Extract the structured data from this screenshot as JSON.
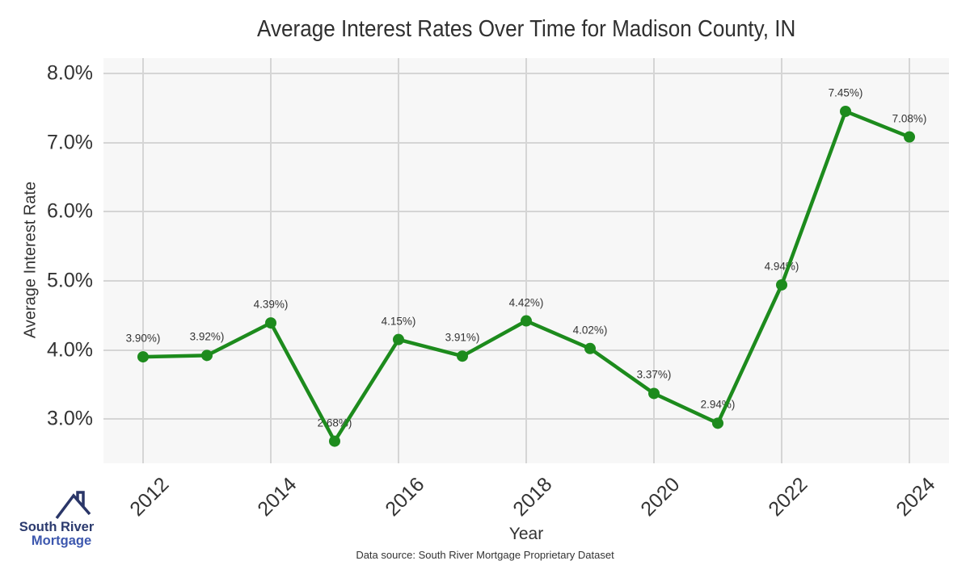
{
  "title": "Average Interest Rates Over Time for Madison County, IN",
  "chart_data": {
    "type": "line",
    "x": [
      2012,
      2013,
      2014,
      2015,
      2016,
      2017,
      2018,
      2019,
      2020,
      2021,
      2022,
      2023,
      2024
    ],
    "values": [
      3.9,
      3.92,
      4.39,
      2.68,
      4.15,
      3.91,
      4.42,
      4.02,
      3.37,
      2.94,
      4.94,
      7.45,
      7.08
    ],
    "point_labels": [
      "3.90%)",
      "3.92%)",
      "4.39%)",
      "2.68%)",
      "4.15%)",
      "3.91%)",
      "4.42%)",
      "4.02%)",
      "3.37%)",
      "2.94%)",
      "4.94%)",
      "7.45%)",
      "7.08%)"
    ],
    "title": "Average Interest Rates Over Time for Madison County, IN",
    "xlabel": "Year",
    "ylabel": "Average Interest Rate",
    "xticks": [
      2012,
      2014,
      2016,
      2018,
      2020,
      2022,
      2024
    ],
    "xtick_labels": [
      "2012",
      "2014",
      "2016",
      "2018",
      "2020",
      "2022",
      "2024"
    ],
    "yticks": [
      3,
      4,
      5,
      6,
      7,
      8
    ],
    "ytick_labels": [
      "3.0%",
      "4.0%",
      "5.0%",
      "6.0%",
      "7.0%",
      "8.0%"
    ],
    "xlim": [
      2011.38,
      2024.62
    ],
    "ylim": [
      2.36,
      8.22
    ],
    "grid": true,
    "legend": "none",
    "line_color": "#1d8b1d",
    "marker": "circle",
    "plot_bg": "#f7f7f7",
    "grid_color": "#d5d5d5"
  },
  "footer": {
    "data_source": "Data source: South River Mortgage Proprietary Dataset"
  },
  "logo": {
    "line1": "South River",
    "line2": "Mortgage",
    "icon": "house-roof-icon",
    "color_line1": "#2b3a6e",
    "color_line2": "#3c57ae",
    "color_icon": "#2a3668"
  }
}
